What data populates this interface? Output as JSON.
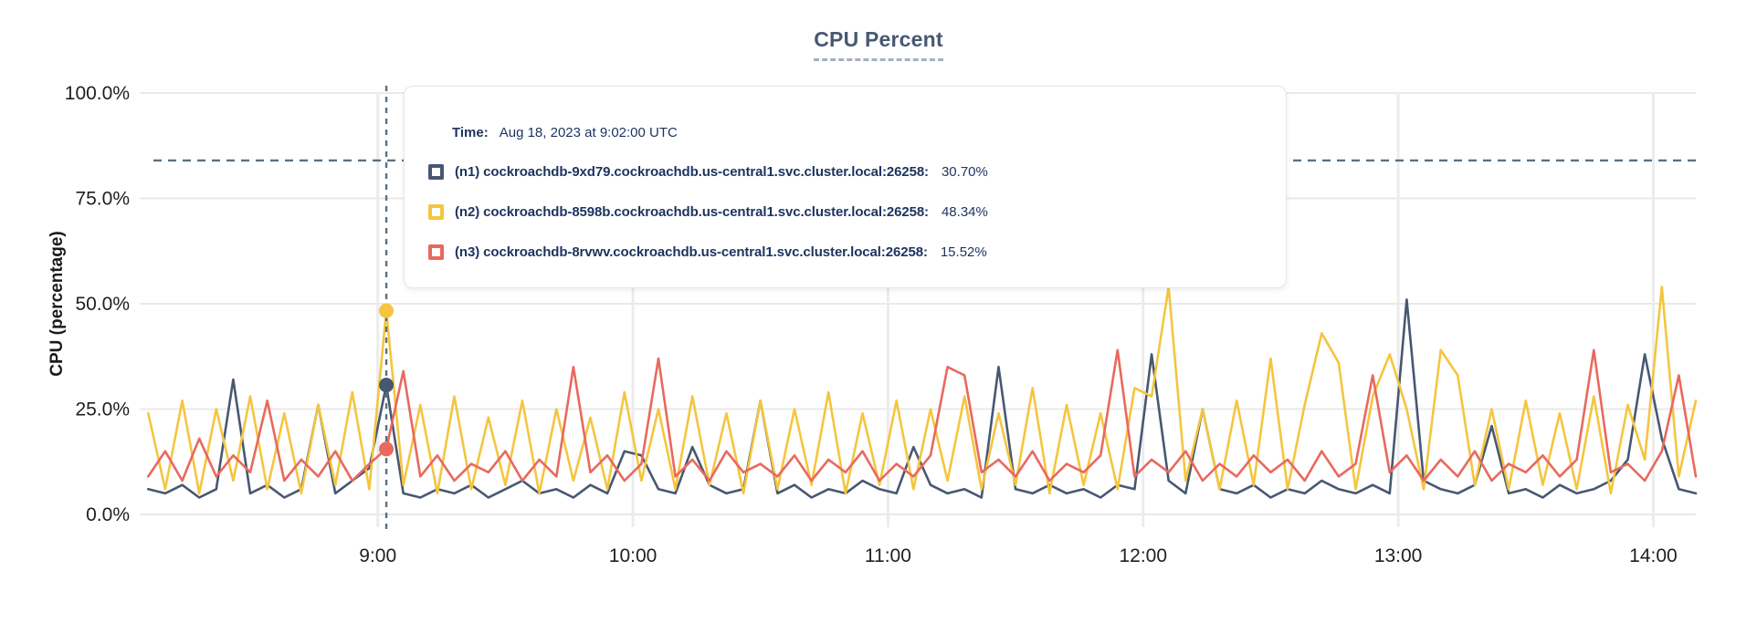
{
  "header": {
    "title": "CPU Percent"
  },
  "y_axis": {
    "title": "CPU (percentage)",
    "tick_values": [
      0,
      25,
      50,
      75,
      100
    ],
    "tick_labels": [
      "0.0%",
      "25.0%",
      "50.0%",
      "75.0%",
      "100.0%"
    ]
  },
  "x_axis": {
    "tick_minutes": [
      540,
      600,
      660,
      720,
      780,
      840
    ],
    "tick_labels": [
      "9:00",
      "10:00",
      "11:00",
      "12:00",
      "13:00",
      "14:00"
    ]
  },
  "tooltip": {
    "time_label": "Time:",
    "time_value": "Aug 18, 2023 at 9:02:00 UTC",
    "rows": [
      {
        "id": "n1",
        "label": "(n1) cockroachdb-9xd79.cockroachdb.us-central1.svc.cluster.local:26258:",
        "value": "30.70%",
        "color": "#475872"
      },
      {
        "id": "n2",
        "label": "(n2) cockroachdb-8598b.cockroachdb.us-central1.svc.cluster.local:26258:",
        "value": "48.34%",
        "color": "#F5C53F"
      },
      {
        "id": "n3",
        "label": "(n3) cockroachdb-8rvwv.cockroachdb.us-central1.svc.cluster.local:26258:",
        "value": "15.52%",
        "color": "#E8695E"
      }
    ]
  },
  "colors": {
    "title": "#475872",
    "grid_horizontal": "#e9e9e9",
    "grid_vertical": "#ececec",
    "dashed_guides": "#5b7080",
    "tick_text": "#1f1f1f",
    "tooltip_text": "#1c335e",
    "background": "#ffffff"
  },
  "chart_data": {
    "type": "line",
    "title": "CPU Percent",
    "xlabel": "",
    "ylabel": "CPU (percentage)",
    "ylim": [
      0,
      100
    ],
    "grid": true,
    "legend_position": "tooltip-overlay",
    "x_window_minutes": [
      484,
      850
    ],
    "x_start_minutes": 486,
    "x_step_minutes": 4,
    "threshold_percent": 84,
    "hover": {
      "time_minutes": 542,
      "time_label": "Aug 18, 2023 at 9:02:00 UTC",
      "points": [
        {
          "series": "n1",
          "value": 30.7
        },
        {
          "series": "n2",
          "value": 48.34
        },
        {
          "series": "n3",
          "value": 15.52
        }
      ]
    },
    "series": [
      {
        "id": "n1",
        "name": "(n1) cockroachdb-9xd79.cockroachdb.us-central1.svc.cluster.local:26258",
        "color": "#475872",
        "values": [
          6,
          5,
          7,
          4,
          6,
          32,
          5,
          7,
          4,
          6,
          26,
          5,
          8,
          11,
          30.7,
          5,
          4,
          6,
          5,
          7,
          4,
          6,
          8,
          5,
          6,
          4,
          7,
          5,
          15,
          14,
          6,
          5,
          16,
          7,
          5,
          6,
          27,
          5,
          7,
          4,
          6,
          5,
          8,
          6,
          5,
          16,
          7,
          5,
          6,
          4,
          35,
          6,
          5,
          7,
          5,
          6,
          4,
          7,
          6,
          38,
          8,
          5,
          25,
          6,
          5,
          7,
          4,
          6,
          5,
          8,
          6,
          5,
          7,
          5,
          51,
          8,
          6,
          5,
          7,
          21,
          5,
          6,
          4,
          7,
          5,
          6,
          8,
          13,
          38,
          18,
          6,
          5
        ]
      },
      {
        "id": "n2",
        "name": "(n2) cockroachdb-8598b.cockroachdb.us-central1.svc.cluster.local:26258",
        "color": "#F5C53F",
        "values": [
          24,
          6,
          27,
          5,
          25,
          8,
          28,
          6,
          24,
          5,
          26,
          7,
          29,
          6,
          48.34,
          7,
          26,
          5,
          28,
          6,
          23,
          7,
          27,
          5,
          25,
          8,
          23,
          6,
          29,
          8,
          25,
          6,
          28,
          7,
          24,
          5,
          27,
          6,
          25,
          7,
          29,
          5,
          24,
          7,
          27,
          6,
          25,
          8,
          28,
          6,
          24,
          7,
          30,
          5,
          26,
          7,
          24,
          6,
          30,
          28,
          54,
          8,
          25,
          6,
          27,
          7,
          37,
          6,
          26,
          43,
          36,
          6,
          28,
          38,
          25,
          6,
          39,
          33,
          7,
          25,
          6,
          27,
          7,
          24,
          6,
          28,
          5,
          26,
          13,
          54,
          9,
          27
        ]
      },
      {
        "id": "n3",
        "name": "(n3) cockroachdb-8rvwv.cockroachdb.us-central1.svc.cluster.local:26258",
        "color": "#E8695E",
        "values": [
          9,
          15,
          8,
          18,
          9,
          14,
          10,
          27,
          8,
          13,
          9,
          15,
          8,
          12,
          15.52,
          34,
          9,
          14,
          8,
          12,
          10,
          15,
          8,
          13,
          9,
          35,
          10,
          14,
          8,
          12,
          37,
          9,
          13,
          8,
          15,
          10,
          12,
          9,
          14,
          8,
          13,
          10,
          15,
          8,
          12,
          9,
          14,
          35,
          33,
          10,
          13,
          9,
          15,
          8,
          12,
          10,
          14,
          39,
          9,
          13,
          10,
          15,
          8,
          12,
          9,
          14,
          10,
          13,
          8,
          15,
          9,
          12,
          33,
          10,
          14,
          8,
          13,
          9,
          15,
          8,
          12,
          10,
          14,
          9,
          13,
          39,
          10,
          12,
          8,
          15,
          33,
          9
        ]
      }
    ]
  }
}
